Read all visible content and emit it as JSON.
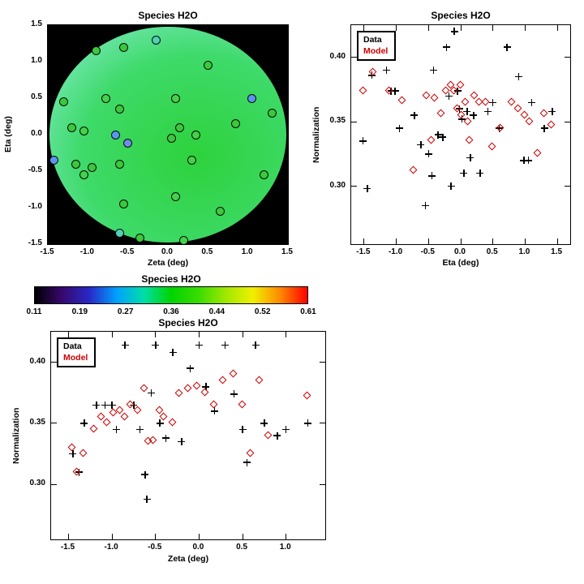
{
  "background": "#ffffff",
  "accent_red": "#cc0000",
  "chart_data": [
    {
      "id": "spatial-map",
      "type": "scatter",
      "title": "Species H2O",
      "xlabel": "Zeta (deg)",
      "ylabel": "Eta (deg)",
      "xlim": [
        -1.5,
        1.5
      ],
      "ylim": [
        -1.5,
        1.5
      ],
      "xticks": {
        "values": [
          -1.5,
          -1.0,
          -0.5,
          0.0,
          0.5,
          1.0,
          1.5
        ],
        "labels": [
          "-1.5",
          "-1.0",
          "-0.5",
          "0.0",
          "0.5",
          "1.0",
          "1.5"
        ]
      },
      "yticks": {
        "values": [
          1.5,
          1.0,
          0.5,
          0.0,
          -0.5,
          -1.0,
          -1.5
        ],
        "labels": [
          "1.5",
          "1.0",
          "0.5",
          "0.0",
          "-0.5",
          "-1.0",
          "-1.5"
        ]
      },
      "grid": false,
      "background": "#000000",
      "field": {
        "shape": "ellipse",
        "value_range": [
          0.11,
          0.61
        ],
        "center_color": "#2ed23c",
        "mid_color": "#3eda6a",
        "edge_color": "#8feed8"
      },
      "points": [
        [
          -0.9,
          1.15,
          "#3cc83c"
        ],
        [
          -0.55,
          1.2,
          "#3cc83c"
        ],
        [
          -0.15,
          1.3,
          "#50d2b4"
        ],
        [
          0.5,
          0.95,
          "#3cc83c"
        ],
        [
          -1.3,
          0.45,
          "#3cc83c"
        ],
        [
          -0.78,
          0.5,
          "#44d24a"
        ],
        [
          -0.6,
          0.35,
          "#3cc83c"
        ],
        [
          0.1,
          0.5,
          "#44d24a"
        ],
        [
          1.05,
          0.5,
          "#5a96f0"
        ],
        [
          1.3,
          0.3,
          "#3cc83c"
        ],
        [
          -1.2,
          0.1,
          "#3cc83c"
        ],
        [
          -1.05,
          0.05,
          "#44d24a"
        ],
        [
          -0.65,
          0.0,
          "#5a96f0"
        ],
        [
          -0.5,
          -0.12,
          "#6e8ce6"
        ],
        [
          0.15,
          0.1,
          "#3cc83c"
        ],
        [
          0.35,
          0.0,
          "#44d24a"
        ],
        [
          0.85,
          0.15,
          "#3cc83c"
        ],
        [
          -1.42,
          -0.35,
          "#5a96f0"
        ],
        [
          -1.15,
          -0.4,
          "#3cc83c"
        ],
        [
          -1.05,
          -0.55,
          "#44d24a"
        ],
        [
          -0.95,
          -0.45,
          "#3cc83c"
        ],
        [
          -0.6,
          -0.4,
          "#3cc83c"
        ],
        [
          0.3,
          -0.35,
          "#44d24a"
        ],
        [
          1.2,
          -0.55,
          "#3cc83c"
        ],
        [
          -0.55,
          -0.95,
          "#3cc83c"
        ],
        [
          0.1,
          -0.85,
          "#44d24a"
        ],
        [
          0.65,
          -1.05,
          "#3cc83c"
        ],
        [
          -0.6,
          -1.35,
          "#50d2b4"
        ],
        [
          -0.35,
          -1.42,
          "#3cc83c"
        ],
        [
          0.2,
          -1.45,
          "#44d24a"
        ],
        [
          0.05,
          -0.05,
          "#3cc83c"
        ]
      ]
    },
    {
      "id": "norm-vs-eta",
      "type": "scatter",
      "title": "Species H2O",
      "xlabel": "Eta (deg)",
      "ylabel": "Normalization",
      "xlim": [
        -1.7,
        1.7
      ],
      "ylim": [
        0.255,
        0.425
      ],
      "xticks": {
        "values": [
          -1.5,
          -1.0,
          -0.5,
          0.0,
          0.5,
          1.0,
          1.5
        ],
        "labels": [
          "-1.5",
          "-1.0",
          "-0.5",
          "0.0",
          "0.5",
          "1.0",
          "1.5"
        ]
      },
      "yticks": {
        "values": [
          0.3,
          0.35,
          0.4
        ],
        "labels": [
          "0.30",
          "0.35",
          "0.40"
        ]
      },
      "grid": false,
      "legend_position": "top-left",
      "series": [
        {
          "name": "Data",
          "marker": "plus",
          "color": "#000000",
          "points": [
            [
              -1.52,
              0.335
            ],
            [
              -1.45,
              0.298
            ],
            [
              -1.38,
              0.386
            ],
            [
              -1.15,
              0.39
            ],
            [
              -1.08,
              0.374
            ],
            [
              -1.02,
              0.374
            ],
            [
              -0.95,
              0.345
            ],
            [
              -0.72,
              0.355
            ],
            [
              -0.62,
              0.332
            ],
            [
              -0.55,
              0.285
            ],
            [
              -0.5,
              0.325
            ],
            [
              -0.45,
              0.308
            ],
            [
              -0.42,
              0.39
            ],
            [
              -0.35,
              0.34
            ],
            [
              -0.28,
              0.338
            ],
            [
              -0.22,
              0.408
            ],
            [
              -0.18,
              0.37
            ],
            [
              -0.15,
              0.3
            ],
            [
              -0.1,
              0.42
            ],
            [
              -0.05,
              0.374
            ],
            [
              -0.02,
              0.36
            ],
            [
              0.02,
              0.352
            ],
            [
              0.05,
              0.31
            ],
            [
              0.1,
              0.358
            ],
            [
              0.15,
              0.322
            ],
            [
              0.2,
              0.355
            ],
            [
              0.3,
              0.31
            ],
            [
              0.42,
              0.358
            ],
            [
              0.5,
              0.365
            ],
            [
              0.6,
              0.345
            ],
            [
              0.72,
              0.408
            ],
            [
              0.9,
              0.385
            ],
            [
              0.98,
              0.32
            ],
            [
              1.05,
              0.32
            ],
            [
              1.1,
              0.365
            ],
            [
              1.3,
              0.345
            ],
            [
              1.42,
              0.358
            ]
          ]
        },
        {
          "name": "Model",
          "marker": "diamond",
          "color": "#cc0000",
          "points": [
            [
              -1.5,
              0.374
            ],
            [
              -1.35,
              0.388
            ],
            [
              -1.1,
              0.374
            ],
            [
              -0.9,
              0.366
            ],
            [
              -0.72,
              0.312
            ],
            [
              -0.52,
              0.37
            ],
            [
              -0.45,
              0.335
            ],
            [
              -0.4,
              0.368
            ],
            [
              -0.3,
              0.356
            ],
            [
              -0.22,
              0.374
            ],
            [
              -0.15,
              0.378
            ],
            [
              -0.1,
              0.374
            ],
            [
              -0.05,
              0.36
            ],
            [
              0.0,
              0.378
            ],
            [
              0.02,
              0.355
            ],
            [
              0.08,
              0.365
            ],
            [
              0.12,
              0.35
            ],
            [
              0.15,
              0.335
            ],
            [
              0.22,
              0.37
            ],
            [
              0.3,
              0.365
            ],
            [
              0.4,
              0.365
            ],
            [
              0.5,
              0.33
            ],
            [
              0.62,
              0.345
            ],
            [
              0.8,
              0.365
            ],
            [
              0.9,
              0.36
            ],
            [
              1.0,
              0.355
            ],
            [
              1.08,
              0.35
            ],
            [
              1.2,
              0.325
            ],
            [
              1.3,
              0.356
            ],
            [
              1.42,
              0.347
            ]
          ]
        }
      ]
    },
    {
      "id": "colorbar",
      "type": "colorbar",
      "title": "Species H2O",
      "orientation": "horizontal",
      "value_range": [
        0.11,
        0.61
      ],
      "tick_labels": [
        "0.11",
        "0.19",
        "0.27",
        "0.36",
        "0.44",
        "0.52",
        "0.61"
      ],
      "colors": [
        "#000000",
        "#38086e",
        "#2828c8",
        "#00a0ff",
        "#00dea8",
        "#00d400",
        "#38dc00",
        "#a0e800",
        "#f0f000",
        "#ff8800",
        "#ff0000"
      ]
    },
    {
      "id": "norm-vs-zeta",
      "type": "scatter",
      "title": "Species H2O",
      "xlabel": "Zeta (deg)",
      "ylabel": "Normalization",
      "xlim": [
        -1.7,
        1.45
      ],
      "ylim": [
        0.255,
        0.425
      ],
      "xticks": {
        "values": [
          -1.5,
          -1.0,
          -0.5,
          0.0,
          0.5,
          1.0
        ],
        "labels": [
          "-1.5",
          "-1.0",
          "-0.5",
          "0.0",
          "0.5",
          "1.0"
        ]
      },
      "yticks": {
        "values": [
          0.3,
          0.35,
          0.4
        ],
        "labels": [
          "0.30",
          "0.35",
          "0.40"
        ]
      },
      "grid": false,
      "legend_position": "top-left",
      "series": [
        {
          "name": "Data",
          "marker": "plus",
          "color": "#000000",
          "points": [
            [
              -1.45,
              0.325
            ],
            [
              -1.38,
              0.31
            ],
            [
              -1.32,
              0.35
            ],
            [
              -1.18,
              0.365
            ],
            [
              -1.08,
              0.365
            ],
            [
              -1.0,
              0.365
            ],
            [
              -0.95,
              0.345
            ],
            [
              -0.85,
              0.414
            ],
            [
              -0.75,
              0.365
            ],
            [
              -0.68,
              0.345
            ],
            [
              -0.62,
              0.308
            ],
            [
              -0.6,
              0.288
            ],
            [
              -0.55,
              0.375
            ],
            [
              -0.5,
              0.414
            ],
            [
              -0.45,
              0.35
            ],
            [
              -0.38,
              0.338
            ],
            [
              -0.3,
              0.408
            ],
            [
              -0.2,
              0.335
            ],
            [
              -0.1,
              0.395
            ],
            [
              0.0,
              0.414
            ],
            [
              0.08,
              0.38
            ],
            [
              0.18,
              0.36
            ],
            [
              0.3,
              0.414
            ],
            [
              0.4,
              0.374
            ],
            [
              0.5,
              0.345
            ],
            [
              0.55,
              0.318
            ],
            [
              0.65,
              0.414
            ],
            [
              0.75,
              0.35
            ],
            [
              0.9,
              0.34
            ],
            [
              1.0,
              0.345
            ],
            [
              1.25,
              0.35
            ]
          ]
        },
        {
          "name": "Model",
          "marker": "diamond",
          "color": "#cc0000",
          "points": [
            [
              -1.45,
              0.33
            ],
            [
              -1.4,
              0.31
            ],
            [
              -1.32,
              0.325
            ],
            [
              -1.2,
              0.345
            ],
            [
              -1.12,
              0.355
            ],
            [
              -1.05,
              0.35
            ],
            [
              -0.98,
              0.358
            ],
            [
              -0.9,
              0.36
            ],
            [
              -0.85,
              0.355
            ],
            [
              -0.78,
              0.365
            ],
            [
              -0.7,
              0.36
            ],
            [
              -0.62,
              0.378
            ],
            [
              -0.58,
              0.335
            ],
            [
              -0.52,
              0.336
            ],
            [
              -0.45,
              0.36
            ],
            [
              -0.4,
              0.355
            ],
            [
              -0.3,
              0.35
            ],
            [
              -0.22,
              0.374
            ],
            [
              -0.12,
              0.378
            ],
            [
              -0.02,
              0.38
            ],
            [
              0.08,
              0.375
            ],
            [
              0.18,
              0.365
            ],
            [
              0.28,
              0.385
            ],
            [
              0.4,
              0.39
            ],
            [
              0.5,
              0.365
            ],
            [
              0.6,
              0.325
            ],
            [
              0.7,
              0.385
            ],
            [
              0.8,
              0.34
            ],
            [
              1.25,
              0.372
            ]
          ]
        }
      ]
    }
  ]
}
